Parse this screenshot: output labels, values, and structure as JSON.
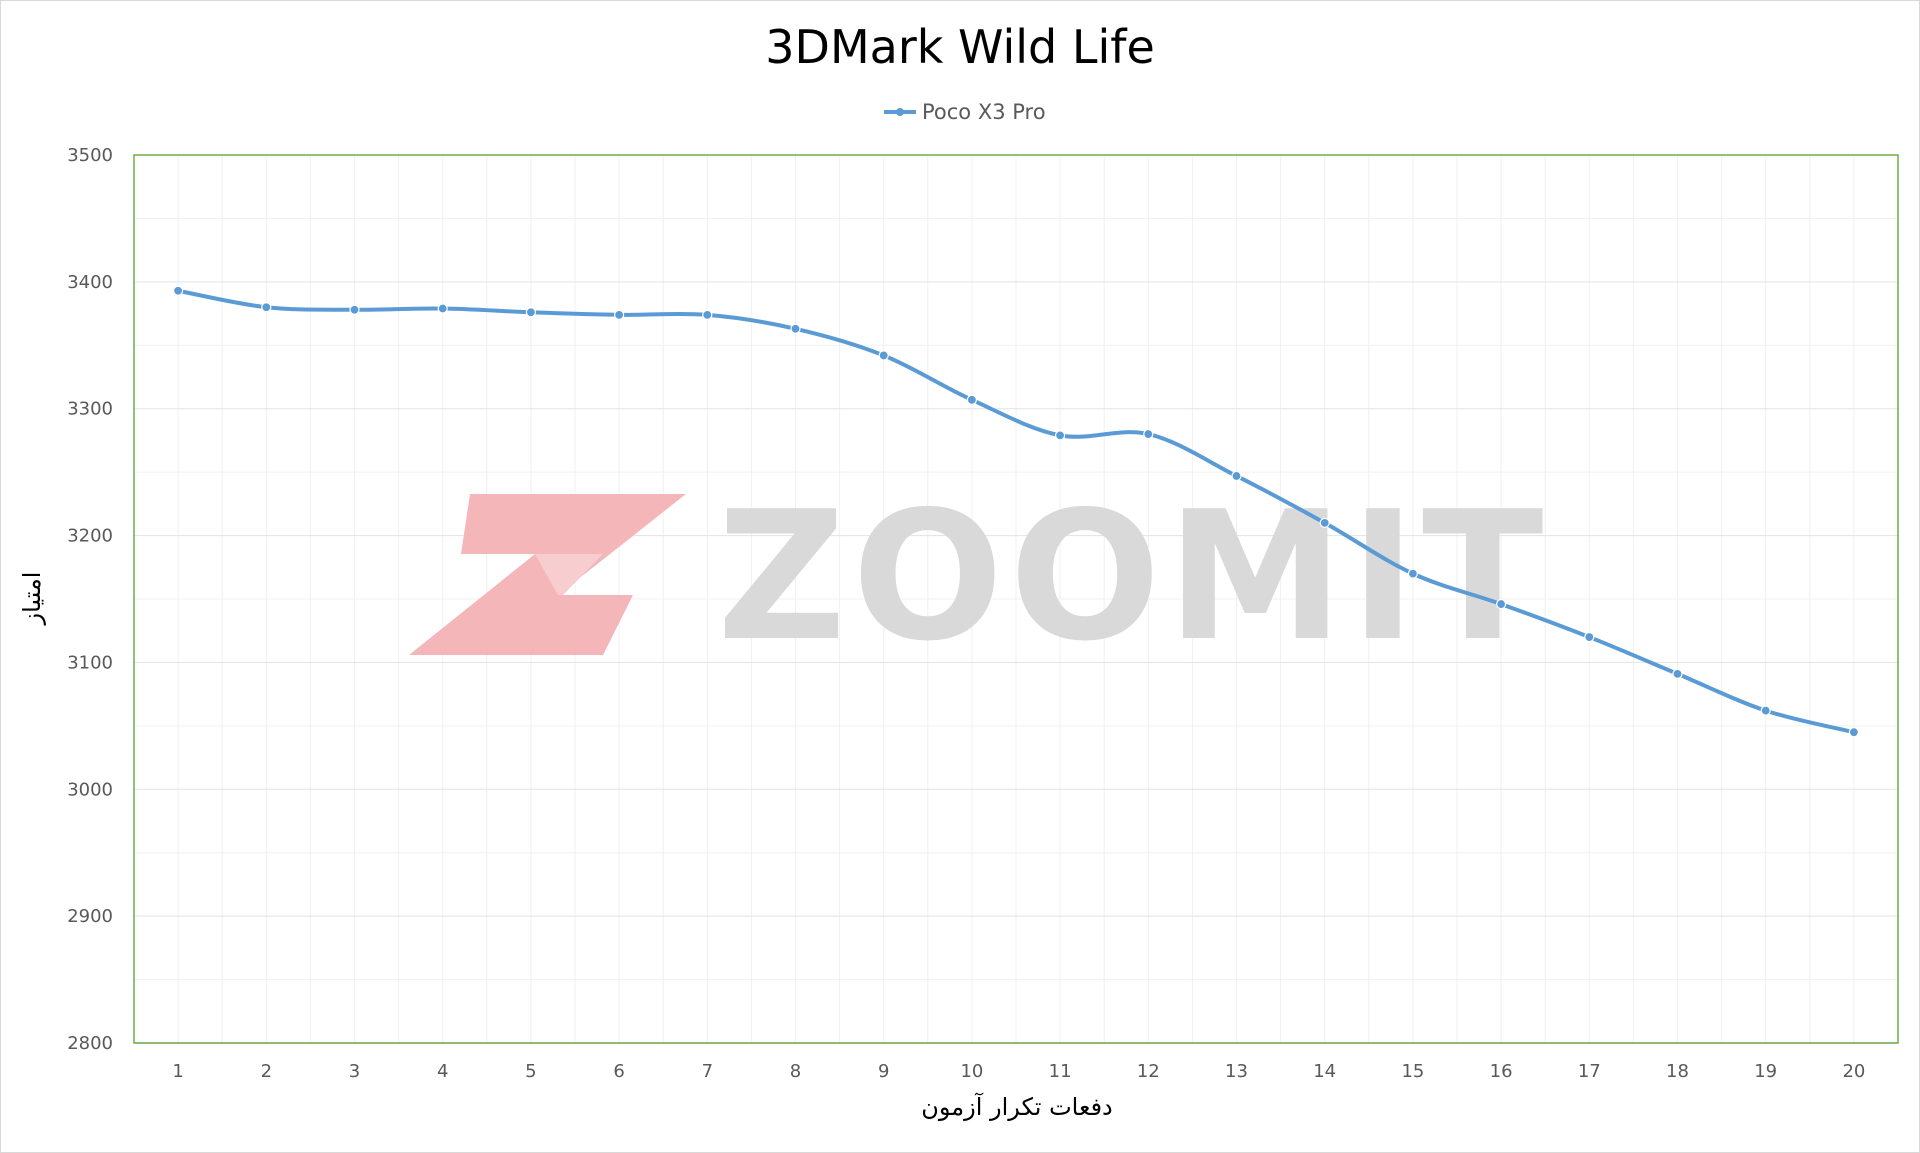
{
  "chart_data": {
    "type": "line",
    "title": "3DMark Wild Life",
    "xlabel": "دفعات تکرار آزمون",
    "ylabel": "امتیاز",
    "categories": [
      "1",
      "2",
      "3",
      "4",
      "5",
      "6",
      "7",
      "8",
      "9",
      "10",
      "11",
      "12",
      "13",
      "14",
      "15",
      "16",
      "17",
      "18",
      "19",
      "20"
    ],
    "series": [
      {
        "name": "Poco X3 Pro",
        "color": "#5b9bd5",
        "values": [
          3393,
          3380,
          3378,
          3379,
          3376,
          3374,
          3374,
          3363,
          3342,
          3307,
          3279,
          3280,
          3247,
          3210,
          3170,
          3146,
          3120,
          3091,
          3062,
          3045
        ]
      }
    ],
    "ylim": [
      2800,
      3500
    ],
    "yticks": [
      2800,
      2900,
      3000,
      3100,
      3200,
      3300,
      3400,
      3500
    ],
    "legend_position": "top",
    "grid": true,
    "smooth": true,
    "plot_border_color": "#70ad47"
  },
  "watermark": {
    "text": "ZOOMIT",
    "logo_color": "#f4b6b8",
    "text_color": "#d9d9d9"
  }
}
